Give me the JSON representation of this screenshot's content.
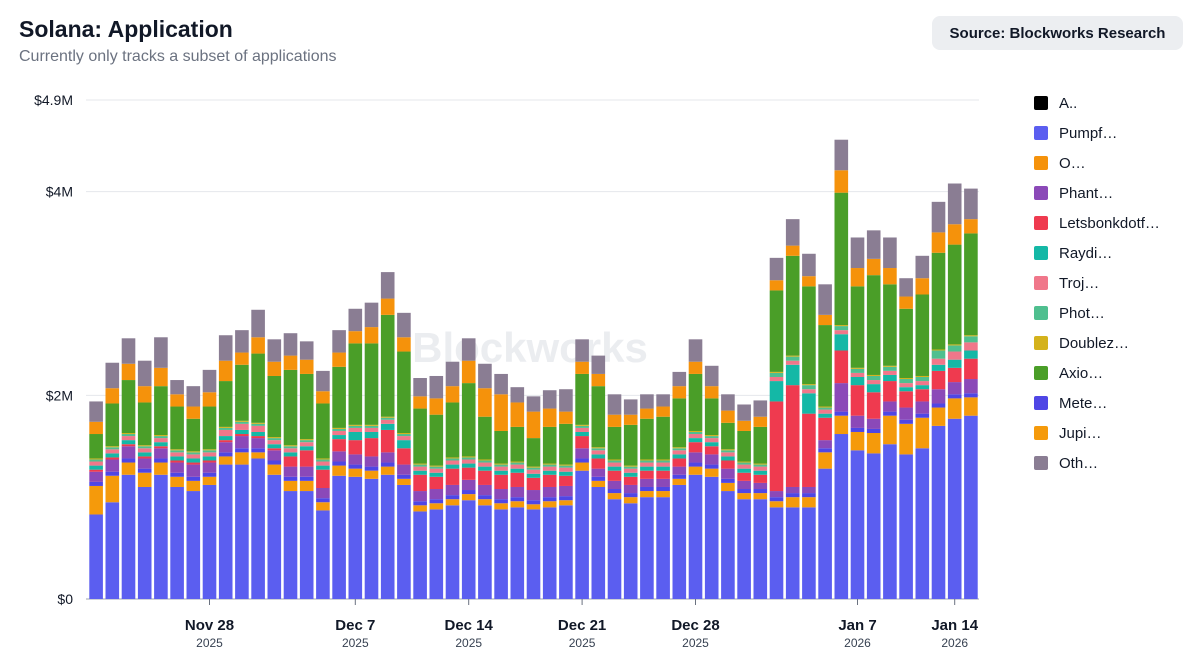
{
  "header": {
    "title": "Solana: Application",
    "subtitle": "Currently only tracks a subset of applications",
    "source_label": "Source: Blockworks Research"
  },
  "watermark": "Blockworks",
  "chart_data": {
    "type": "bar",
    "stacked": true,
    "y_tick_labels": [
      "$0",
      "$2M",
      "$4M",
      "$4.9M"
    ],
    "y_tick_values": [
      0,
      2,
      4,
      4.9
    ],
    "ylim": [
      0,
      4.9
    ],
    "y_unit": "USD millions",
    "x_ticks": [
      {
        "label": "Nov 28",
        "sub": "2025",
        "index": 7
      },
      {
        "label": "Dec 7",
        "sub": "2025",
        "index": 16
      },
      {
        "label": "Dec 14",
        "sub": "2025",
        "index": 23
      },
      {
        "label": "Dec 21",
        "sub": "2025",
        "index": 30
      },
      {
        "label": "Dec 28",
        "sub": "2025",
        "index": 37
      },
      {
        "label": "Jan 7",
        "sub": "2026",
        "index": 47
      },
      {
        "label": "Jan 14",
        "sub": "2026",
        "index": 53
      }
    ],
    "grid": true,
    "legend_position": "right",
    "series": [
      {
        "name": "Pumpf…",
        "color": "#5b5ef0",
        "values": [
          0.83,
          0.95,
          1.22,
          1.1,
          1.22,
          1.1,
          1.06,
          1.12,
          1.32,
          1.32,
          1.38,
          1.22,
          1.06,
          1.06,
          0.87,
          1.21,
          1.2,
          1.18,
          1.22,
          1.12,
          0.86,
          0.88,
          0.92,
          0.97,
          0.92,
          0.88,
          0.9,
          0.88,
          0.9,
          0.92,
          1.26,
          1.1,
          0.98,
          0.94,
          1.0,
          1.0,
          1.12,
          1.22,
          1.2,
          1.06,
          0.98,
          0.98,
          0.9,
          0.9,
          0.9,
          1.28,
          1.62,
          1.46,
          1.43,
          1.52,
          1.42,
          1.48,
          1.7,
          1.77,
          1.8
        ]
      },
      {
        "name": "Jupi…",
        "color": "#f59a0b",
        "values": [
          0.28,
          0.26,
          0.12,
          0.14,
          0.12,
          0.1,
          0.1,
          0.08,
          0.08,
          0.12,
          0.06,
          0.1,
          0.1,
          0.1,
          0.08,
          0.1,
          0.08,
          0.08,
          0.08,
          0.06,
          0.06,
          0.06,
          0.06,
          0.06,
          0.06,
          0.06,
          0.06,
          0.05,
          0.06,
          0.05,
          0.08,
          0.06,
          0.06,
          0.06,
          0.06,
          0.06,
          0.06,
          0.08,
          0.08,
          0.08,
          0.06,
          0.06,
          0.06,
          0.1,
          0.1,
          0.16,
          0.18,
          0.18,
          0.2,
          0.28,
          0.3,
          0.3,
          0.18,
          0.2,
          0.18
        ]
      },
      {
        "name": "Mete…",
        "color": "#4f46e5",
        "values": [
          0.04,
          0.04,
          0.04,
          0.04,
          0.04,
          0.04,
          0.04,
          0.04,
          0.04,
          0.04,
          0.04,
          0.04,
          0.04,
          0.04,
          0.04,
          0.04,
          0.04,
          0.04,
          0.04,
          0.04,
          0.04,
          0.04,
          0.04,
          0.04,
          0.04,
          0.04,
          0.04,
          0.04,
          0.04,
          0.04,
          0.04,
          0.04,
          0.04,
          0.04,
          0.04,
          0.04,
          0.04,
          0.04,
          0.04,
          0.04,
          0.04,
          0.04,
          0.04,
          0.04,
          0.04,
          0.04,
          0.04,
          0.04,
          0.04,
          0.04,
          0.04,
          0.04,
          0.04,
          0.04,
          0.04
        ]
      },
      {
        "name": "Phant…",
        "color": "#8b49b8",
        "values": [
          0.1,
          0.12,
          0.12,
          0.1,
          0.1,
          0.1,
          0.12,
          0.1,
          0.1,
          0.12,
          0.1,
          0.1,
          0.1,
          0.1,
          0.1,
          0.1,
          0.1,
          0.1,
          0.1,
          0.1,
          0.1,
          0.1,
          0.1,
          0.1,
          0.1,
          0.1,
          0.1,
          0.1,
          0.1,
          0.1,
          0.1,
          0.08,
          0.08,
          0.08,
          0.08,
          0.08,
          0.08,
          0.1,
          0.1,
          0.1,
          0.08,
          0.06,
          0.06,
          0.06,
          0.06,
          0.08,
          0.28,
          0.12,
          0.1,
          0.1,
          0.12,
          0.12,
          0.14,
          0.12,
          0.14
        ]
      },
      {
        "name": "Letsbonkdotf…",
        "color": "#ef3a4f",
        "values": [
          0.02,
          0.02,
          0.02,
          0.02,
          0.02,
          0.02,
          0.02,
          0.02,
          0.02,
          0.02,
          0.02,
          0.02,
          0.1,
          0.16,
          0.18,
          0.12,
          0.14,
          0.18,
          0.22,
          0.16,
          0.16,
          0.12,
          0.16,
          0.12,
          0.14,
          0.14,
          0.14,
          0.12,
          0.12,
          0.1,
          0.12,
          0.1,
          0.1,
          0.08,
          0.08,
          0.08,
          0.08,
          0.1,
          0.08,
          0.08,
          0.08,
          0.08,
          0.88,
          1.0,
          0.72,
          0.22,
          0.32,
          0.3,
          0.26,
          0.2,
          0.16,
          0.12,
          0.18,
          0.14,
          0.2
        ]
      },
      {
        "name": "Raydi…",
        "color": "#14b8a6",
        "values": [
          0.04,
          0.04,
          0.04,
          0.04,
          0.04,
          0.04,
          0.04,
          0.04,
          0.04,
          0.04,
          0.04,
          0.04,
          0.04,
          0.04,
          0.04,
          0.04,
          0.08,
          0.06,
          0.06,
          0.08,
          0.04,
          0.04,
          0.04,
          0.04,
          0.04,
          0.04,
          0.04,
          0.04,
          0.04,
          0.04,
          0.04,
          0.04,
          0.04,
          0.04,
          0.04,
          0.04,
          0.04,
          0.04,
          0.04,
          0.04,
          0.04,
          0.04,
          0.2,
          0.2,
          0.2,
          0.04,
          0.16,
          0.08,
          0.08,
          0.06,
          0.04,
          0.04,
          0.06,
          0.08,
          0.08
        ]
      },
      {
        "name": "Troj…",
        "color": "#f0778a",
        "values": [
          0.04,
          0.04,
          0.04,
          0.04,
          0.04,
          0.04,
          0.04,
          0.04,
          0.06,
          0.06,
          0.06,
          0.04,
          0.04,
          0.04,
          0.04,
          0.04,
          0.04,
          0.04,
          0.04,
          0.04,
          0.04,
          0.04,
          0.04,
          0.04,
          0.04,
          0.04,
          0.04,
          0.04,
          0.04,
          0.04,
          0.04,
          0.04,
          0.04,
          0.04,
          0.04,
          0.04,
          0.04,
          0.04,
          0.04,
          0.04,
          0.04,
          0.04,
          0.04,
          0.04,
          0.04,
          0.04,
          0.04,
          0.04,
          0.04,
          0.04,
          0.04,
          0.04,
          0.06,
          0.08,
          0.08
        ]
      },
      {
        "name": "Phot…",
        "color": "#4fbf8f",
        "values": [
          0.02,
          0.02,
          0.02,
          0.02,
          0.02,
          0.02,
          0.02,
          0.02,
          0.02,
          0.02,
          0.02,
          0.02,
          0.02,
          0.02,
          0.02,
          0.02,
          0.02,
          0.02,
          0.02,
          0.02,
          0.02,
          0.02,
          0.02,
          0.02,
          0.02,
          0.02,
          0.02,
          0.02,
          0.02,
          0.02,
          0.02,
          0.02,
          0.02,
          0.02,
          0.02,
          0.02,
          0.02,
          0.02,
          0.02,
          0.02,
          0.02,
          0.02,
          0.04,
          0.04,
          0.04,
          0.02,
          0.04,
          0.04,
          0.04,
          0.04,
          0.04,
          0.04,
          0.08,
          0.06,
          0.06
        ]
      },
      {
        "name": "Doublez…",
        "color": "#d4b21c",
        "values": [
          0.01,
          0.01,
          0.01,
          0.01,
          0.01,
          0.01,
          0.01,
          0.01,
          0.01,
          0.01,
          0.01,
          0.01,
          0.01,
          0.01,
          0.01,
          0.01,
          0.01,
          0.01,
          0.01,
          0.01,
          0.01,
          0.01,
          0.01,
          0.01,
          0.01,
          0.01,
          0.01,
          0.01,
          0.01,
          0.01,
          0.01,
          0.01,
          0.01,
          0.01,
          0.01,
          0.01,
          0.01,
          0.01,
          0.01,
          0.01,
          0.01,
          0.01,
          0.01,
          0.01,
          0.01,
          0.01,
          0.01,
          0.01,
          0.01,
          0.01,
          0.01,
          0.01,
          0.01,
          0.01,
          0.01
        ]
      },
      {
        "name": "Axio…",
        "color": "#4a9e28",
        "values": [
          0.24,
          0.42,
          0.52,
          0.42,
          0.48,
          0.42,
          0.32,
          0.42,
          0.45,
          0.55,
          0.68,
          0.6,
          0.74,
          0.64,
          0.54,
          0.6,
          0.8,
          0.8,
          1.0,
          0.8,
          0.54,
          0.5,
          0.54,
          0.72,
          0.42,
          0.32,
          0.34,
          0.28,
          0.36,
          0.4,
          0.5,
          0.6,
          0.32,
          0.4,
          0.4,
          0.42,
          0.48,
          0.56,
          0.36,
          0.26,
          0.3,
          0.36,
          0.8,
          0.98,
          0.96,
          0.8,
          1.3,
          0.8,
          0.98,
          0.8,
          0.68,
          0.8,
          0.95,
          0.98,
          1.0
        ]
      },
      {
        "name": "O…",
        "color": "#f5920b",
        "values": [
          0.12,
          0.15,
          0.16,
          0.16,
          0.18,
          0.12,
          0.12,
          0.14,
          0.2,
          0.12,
          0.16,
          0.14,
          0.14,
          0.14,
          0.12,
          0.14,
          0.12,
          0.16,
          0.16,
          0.14,
          0.12,
          0.16,
          0.16,
          0.22,
          0.28,
          0.36,
          0.24,
          0.26,
          0.18,
          0.12,
          0.12,
          0.12,
          0.12,
          0.1,
          0.1,
          0.1,
          0.12,
          0.12,
          0.12,
          0.12,
          0.1,
          0.1,
          0.1,
          0.1,
          0.1,
          0.1,
          0.22,
          0.18,
          0.16,
          0.16,
          0.12,
          0.16,
          0.2,
          0.2,
          0.14
        ]
      },
      {
        "name": "Oth…",
        "color": "#8a7d93",
        "values": [
          0.2,
          0.25,
          0.25,
          0.25,
          0.3,
          0.14,
          0.2,
          0.22,
          0.25,
          0.22,
          0.27,
          0.22,
          0.22,
          0.18,
          0.2,
          0.22,
          0.22,
          0.24,
          0.26,
          0.24,
          0.18,
          0.22,
          0.24,
          0.22,
          0.24,
          0.2,
          0.15,
          0.15,
          0.18,
          0.22,
          0.22,
          0.18,
          0.2,
          0.15,
          0.14,
          0.12,
          0.14,
          0.22,
          0.2,
          0.16,
          0.16,
          0.16,
          0.22,
          0.26,
          0.22,
          0.3,
          0.3,
          0.3,
          0.28,
          0.3,
          0.18,
          0.22,
          0.3,
          0.4,
          0.3
        ]
      }
    ],
    "legend": [
      {
        "name": "A..",
        "color": "#000000"
      },
      {
        "name": "Pumpf…",
        "color": "#5b5ef0"
      },
      {
        "name": "O…",
        "color": "#f5920b"
      },
      {
        "name": "Phant…",
        "color": "#8b49b8"
      },
      {
        "name": "Letsbonkdotf…",
        "color": "#ef3a4f"
      },
      {
        "name": "Raydi…",
        "color": "#14b8a6"
      },
      {
        "name": "Troj…",
        "color": "#f0778a"
      },
      {
        "name": "Phot…",
        "color": "#4fbf8f"
      },
      {
        "name": "Doublez…",
        "color": "#d4b21c"
      },
      {
        "name": "Axio…",
        "color": "#4a9e28"
      },
      {
        "name": "Mete…",
        "color": "#4f46e5"
      },
      {
        "name": "Jupi…",
        "color": "#f59a0b"
      },
      {
        "name": "Oth…",
        "color": "#8a7d93"
      }
    ]
  }
}
